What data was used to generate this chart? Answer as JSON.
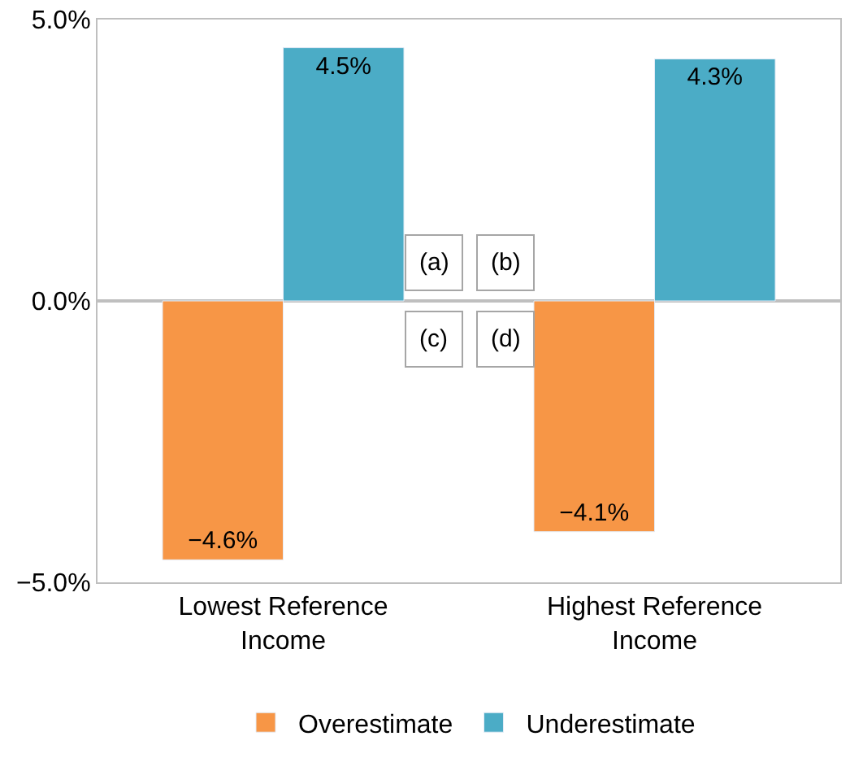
{
  "chart_data": {
    "type": "bar",
    "categories": [
      "Lowest Reference Income",
      "Highest Reference Income"
    ],
    "series": [
      {
        "name": "Overestimate",
        "color": "#f79646",
        "values": [
          -4.6,
          -4.1
        ],
        "value_labels": [
          "−4.6%",
          "−4.1%"
        ]
      },
      {
        "name": "Underestimate",
        "color": "#4bacc6",
        "values": [
          4.5,
          4.3
        ],
        "value_labels": [
          "4.5%",
          "4.3%"
        ]
      }
    ],
    "ylim": [
      -5,
      5
    ],
    "yticks": [
      {
        "value": -5,
        "label": "−5.0%"
      },
      {
        "value": 0,
        "label": "0.0%"
      },
      {
        "value": 5,
        "label": "5.0%"
      }
    ],
    "legend": "bottom",
    "annotations": [
      "(a)",
      "(b)",
      "(c)",
      "(d)"
    ]
  }
}
